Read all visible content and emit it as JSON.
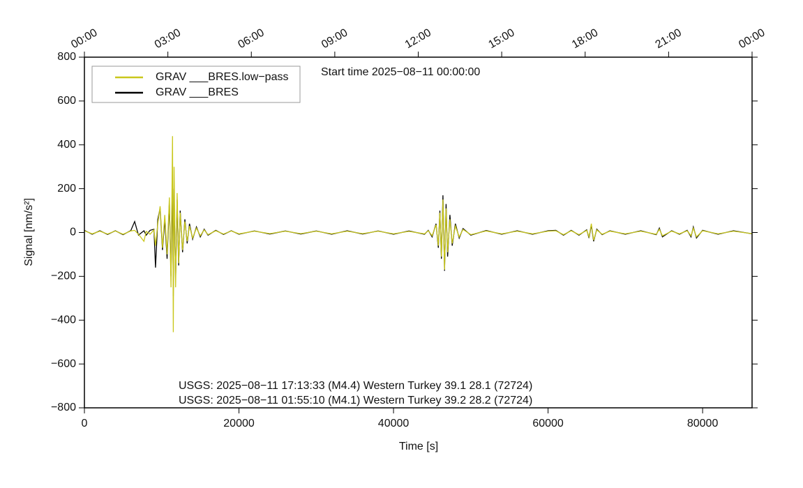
{
  "chart_data": {
    "type": "line",
    "title": "Start time 2025−08−11 00:00:00",
    "x_label": "Time [s]",
    "y_label": "Signal [nm/s²]",
    "annotations": [
      "USGS: 2025−08−11 17:13:33 (M4.4) Western Turkey 39.1 28.1 (72724)",
      "USGS: 2025−08−11 01:55:10 (M4.1) Western Turkey 39.2 28.2 (72724)"
    ],
    "legend": "upper left",
    "xlim": [
      0,
      86400
    ],
    "xticks": [
      0,
      20000,
      40000,
      60000,
      80000
    ],
    "x2ticks": [
      {
        "value": 0,
        "label": "00:00"
      },
      {
        "value": 10800,
        "label": "03:00"
      },
      {
        "value": 21600,
        "label": "06:00"
      },
      {
        "value": 32400,
        "label": "09:00"
      },
      {
        "value": 43200,
        "label": "12:00"
      },
      {
        "value": 54000,
        "label": "15:00"
      },
      {
        "value": 64800,
        "label": "18:00"
      },
      {
        "value": 75600,
        "label": "21:00"
      },
      {
        "value": 86400,
        "label": "00:00"
      }
    ],
    "ylim": [
      -800,
      800
    ],
    "yticks": [
      {
        "value": -800,
        "label": "−800"
      },
      {
        "value": -600,
        "label": "−600"
      },
      {
        "value": -400,
        "label": "−400"
      },
      {
        "value": -200,
        "label": "−200"
      },
      0,
      200,
      400,
      600,
      800
    ],
    "x": [
      0,
      1000,
      2000,
      3000,
      4000,
      5000,
      6000,
      6500,
      7000,
      7700,
      8000,
      8500,
      9000,
      9200,
      9500,
      9800,
      10100,
      10400,
      10700,
      11000,
      11200,
      11400,
      11500,
      11600,
      11800,
      12000,
      12200,
      12400,
      12700,
      13000,
      13300,
      13600,
      14000,
      14500,
      15000,
      15500,
      16000,
      17000,
      18000,
      19000,
      20000,
      22000,
      24000,
      26000,
      28000,
      30000,
      32000,
      34000,
      36000,
      38000,
      40000,
      42000,
      44000,
      44500,
      45000,
      45500,
      45800,
      46000,
      46200,
      46400,
      46600,
      46800,
      47000,
      47300,
      47600,
      48000,
      48500,
      49000,
      50000,
      52000,
      54000,
      56000,
      58000,
      60000,
      61000,
      62000,
      63000,
      64000,
      65000,
      65300,
      65600,
      65900,
      66300,
      67000,
      68000,
      70000,
      72000,
      74000,
      74400,
      74800,
      76000,
      77000,
      78000,
      78500,
      78800,
      79200,
      80000,
      82000,
      84000,
      86400
    ],
    "series": [
      {
        "name": "GRAV ___BRES",
        "color": "#000000",
        "values": [
          10,
          -8,
          8,
          -9,
          8,
          -10,
          9,
          50,
          -12,
          8,
          -12,
          10,
          15,
          -160,
          60,
          110,
          -80,
          60,
          -120,
          140,
          -200,
          240,
          -290,
          200,
          -220,
          150,
          -150,
          100,
          -90,
          60,
          -50,
          40,
          -30,
          25,
          -20,
          15,
          -12,
          10,
          -9,
          8,
          -8,
          7,
          -7,
          7,
          -7,
          7,
          -8,
          8,
          -7,
          7,
          -8,
          7,
          -8,
          10,
          -20,
          40,
          -70,
          100,
          -120,
          170,
          -175,
          130,
          -110,
          80,
          -60,
          40,
          -25,
          18,
          -12,
          9,
          -8,
          8,
          -8,
          8,
          10,
          -12,
          10,
          -12,
          12,
          -25,
          35,
          -40,
          15,
          -10,
          8,
          -8,
          8,
          -10,
          20,
          -20,
          8,
          -8,
          10,
          -20,
          25,
          -25,
          10,
          -8,
          8,
          -6
        ]
      },
      {
        "name": "GRAV ___BRES.low−pass",
        "color": "#c9c71c",
        "values": [
          8,
          -6,
          6,
          -7,
          7,
          -8,
          7,
          10,
          -8,
          -40,
          5,
          -8,
          12,
          -60,
          40,
          120,
          -70,
          80,
          -100,
          160,
          -250,
          440,
          -455,
          300,
          -250,
          180,
          -140,
          90,
          -80,
          50,
          -40,
          30,
          -25,
          20,
          -15,
          12,
          -10,
          8,
          -7,
          7,
          -6,
          6,
          -5,
          6,
          -5,
          6,
          -6,
          6,
          -5,
          6,
          -6,
          5,
          -6,
          8,
          -15,
          35,
          -60,
          90,
          -110,
          150,
          -170,
          110,
          -90,
          60,
          -50,
          30,
          -20,
          14,
          -10,
          7,
          -6,
          6,
          -6,
          6,
          8,
          -10,
          8,
          -10,
          10,
          -20,
          40,
          -35,
          12,
          -8,
          6,
          -6,
          6,
          -8,
          15,
          -15,
          6,
          -6,
          8,
          -15,
          20,
          -20,
          8,
          -6,
          6,
          -5
        ]
      }
    ]
  }
}
